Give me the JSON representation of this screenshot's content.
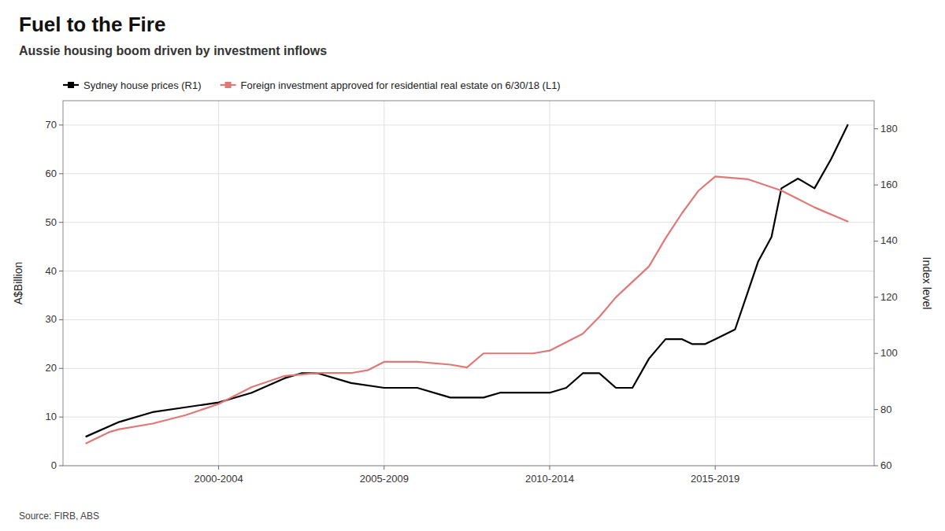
{
  "chart_data": {
    "type": "line",
    "title": "Fuel to the Fire",
    "subtitle": "Aussie housing boom driven by investment inflows",
    "annotations": [
      "Source: FIRB, ABS"
    ],
    "ylabel": "A$Billion",
    "y2label": "Index level",
    "xlim": [
      1997.3,
      2021.8
    ],
    "xticks": [
      {
        "value": 2002,
        "label": "2000-2004"
      },
      {
        "value": 2007,
        "label": "2005-2009"
      },
      {
        "value": 2012,
        "label": "2010-2014"
      },
      {
        "value": 2017,
        "label": "2015-2019"
      }
    ],
    "ylim": [
      0,
      75
    ],
    "yticks": [
      0,
      10,
      20,
      30,
      40,
      50,
      60,
      70
    ],
    "y2lim": [
      60,
      190
    ],
    "y2ticks": [
      60,
      80,
      100,
      120,
      140,
      160,
      180
    ],
    "grid": true,
    "legend": "upper left",
    "series": [
      {
        "name": "Sydney house prices (R1)",
        "color": "#000000",
        "axis": "y",
        "x": [
          1998,
          1999,
          2000,
          2001,
          2002,
          2003,
          2004,
          2004.5,
          2005,
          2006,
          2007,
          2008,
          2009,
          2009.5,
          2010,
          2010.5,
          2011,
          2012,
          2012.5,
          2013,
          2013.5,
          2014,
          2014.5,
          2015,
          2015.5,
          2016,
          2016.3,
          2016.7,
          2017,
          2017.3,
          2017.6,
          2018,
          2018.3,
          2018.7,
          2019,
          2019.5,
          2020,
          2020.5,
          2021
        ],
        "values": [
          6,
          9,
          11,
          12,
          13,
          15,
          18,
          19,
          19,
          17,
          16,
          16,
          14,
          14,
          14,
          15,
          15,
          15,
          16,
          19,
          19,
          16,
          16,
          22,
          26,
          26,
          25,
          25,
          26,
          27,
          28,
          36,
          42,
          47,
          57,
          59,
          57,
          63,
          70
        ]
      },
      {
        "name": "Foreign investment approved for residential real estate on 6/30/18 (L1)",
        "color": "#e07878",
        "axis": "y2",
        "x": [
          1998,
          1998.7,
          1999,
          2000,
          2001,
          2002,
          2003,
          2004,
          2005,
          2006,
          2006.5,
          2007,
          2008,
          2009,
          2009.5,
          2010,
          2011,
          2011.5,
          2012,
          2013,
          2013.5,
          2014,
          2015,
          2015.5,
          2016,
          2016.5,
          2017,
          2018,
          2019,
          2020,
          2021
        ],
        "values": [
          68,
          72,
          73,
          75,
          78,
          82,
          88,
          92,
          93,
          93,
          94,
          97,
          97,
          96,
          95,
          100,
          100,
          100,
          101,
          107,
          113,
          120,
          131,
          141,
          150,
          158,
          163,
          162,
          158,
          152,
          147
        ]
      }
    ]
  }
}
